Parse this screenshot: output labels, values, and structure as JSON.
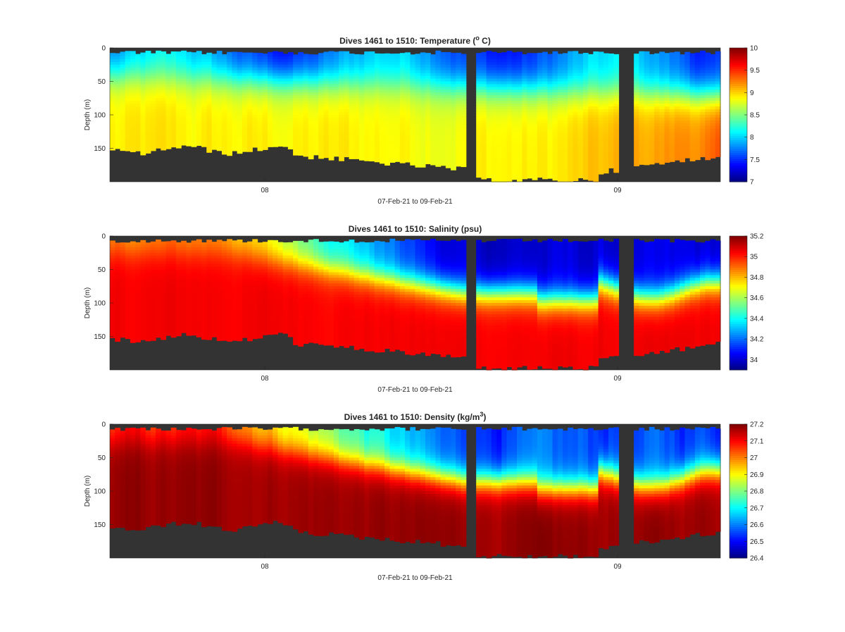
{
  "chart_data": [
    {
      "type": "heatmap",
      "title": "Dives 1461 to 1510: Temperature (",
      "title_sup": "o",
      "title_end": " C)",
      "xlabel": "07-Feb-21 to 09-Feb-21",
      "ylabel": "Depth (m)",
      "x_ticks": [
        "08",
        "09"
      ],
      "y_ticks": [
        "0",
        "50",
        "100",
        "150"
      ],
      "ylim": [
        0,
        200
      ],
      "y_reversed": true,
      "colormap": "jet",
      "clim": [
        7,
        10
      ],
      "colorbar_ticks": [
        "7",
        "7.5",
        "8",
        "8.5",
        "9",
        "9.5",
        "10"
      ],
      "colorbar_tick_values": [
        7,
        7.5,
        8,
        8.5,
        9,
        9.5,
        10
      ],
      "approx_profile": {
        "surface": 7.7,
        "mixed_layer_depth_m": 65,
        "deep": 8.9,
        "deep_late": 9.4
      },
      "missing_data_color": "#333333"
    },
    {
      "type": "heatmap",
      "title": "Dives 1461 to 1510: Salinity (psu)",
      "xlabel": "07-Feb-21 to 09-Feb-21",
      "ylabel": "Depth (m)",
      "x_ticks": [
        "08",
        "09"
      ],
      "y_ticks": [
        "0",
        "50",
        "100",
        "150"
      ],
      "ylim": [
        0,
        200
      ],
      "y_reversed": true,
      "colormap": "jet",
      "clim": [
        33.9,
        35.2
      ],
      "colorbar_ticks": [
        "34",
        "34.2",
        "34.4",
        "34.6",
        "34.8",
        "35",
        "35.2"
      ],
      "colorbar_tick_values": [
        34,
        34.2,
        34.4,
        34.6,
        34.8,
        35,
        35.2
      ],
      "approx_profile": {
        "surface_early": 34.85,
        "surface_late": 34.0,
        "deep": 35.05
      },
      "missing_data_color": "#333333"
    },
    {
      "type": "heatmap",
      "title": "Dives 1461 to 1510: Density (kg/m",
      "title_sup": "3",
      "title_end": ")",
      "xlabel": "07-Feb-21 to 09-Feb-21",
      "ylabel": "Depth (m)",
      "x_ticks": [
        "08",
        "09"
      ],
      "y_ticks": [
        "0",
        "50",
        "100",
        "150"
      ],
      "ylim": [
        0,
        200
      ],
      "y_reversed": true,
      "colormap": "jet",
      "clim": [
        26.4,
        27.2
      ],
      "colorbar_ticks": [
        "26.4",
        "26.5",
        "26.6",
        "26.7",
        "26.8",
        "26.9",
        "27",
        "27.1",
        "27.2"
      ],
      "colorbar_tick_values": [
        26.4,
        26.5,
        26.6,
        26.7,
        26.8,
        26.9,
        27.0,
        27.1,
        27.2
      ],
      "approx_profile": {
        "surface_early": 27.05,
        "surface_late": 26.55,
        "deep": 27.18
      },
      "missing_data_color": "#333333"
    }
  ]
}
